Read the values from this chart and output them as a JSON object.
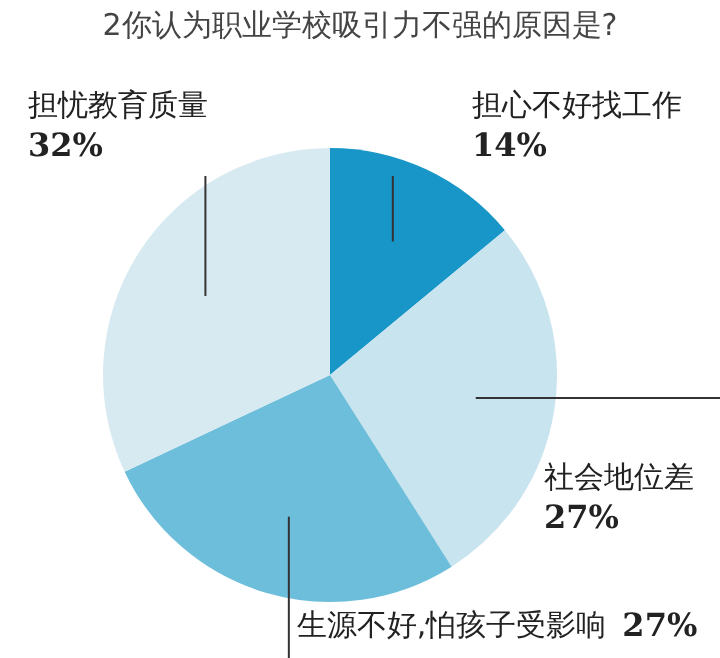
{
  "chart_data": {
    "type": "pie",
    "title": "2你认为职业学校吸引力不强的原因是?",
    "categories": [
      "担心不好找工作",
      "社会地位差",
      "生源不好,怕孩子受影响",
      "担忧教育质量"
    ],
    "values": [
      14,
      27,
      27,
      32
    ],
    "colors": [
      "#1896c8",
      "#c8e4ee",
      "#6cbedb",
      "#d8eaf1"
    ],
    "value_labels": [
      "14%",
      "27%",
      "27%",
      "32%"
    ],
    "legend": false
  }
}
